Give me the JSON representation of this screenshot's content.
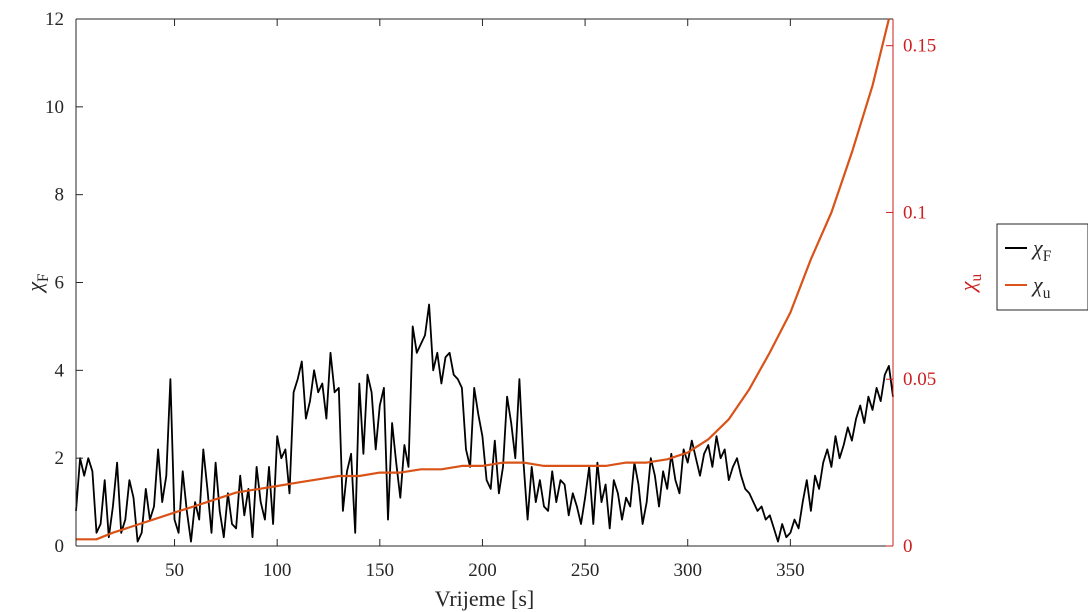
{
  "chart_data": {
    "type": "line",
    "xlabel": "Vrijeme [s]",
    "ylabel": "χF",
    "ylabel_right": "χu",
    "xlim": [
      2,
      400
    ],
    "ylim": [
      0,
      12
    ],
    "ylim_right": [
      0,
      0.158
    ],
    "xticks": [
      50,
      100,
      150,
      200,
      250,
      300,
      350
    ],
    "yticks": [
      0,
      2,
      4,
      6,
      8,
      10,
      12
    ],
    "yticks_right": [
      0,
      0.05,
      0.1,
      0.15
    ],
    "right_axis_color": "#cc1f1f",
    "legend_position": "outside-right",
    "series": [
      {
        "name": "χF",
        "axis": "left",
        "color": "#000000",
        "x": [
          2,
          4,
          6,
          8,
          10,
          12,
          14,
          16,
          18,
          20,
          22,
          24,
          26,
          28,
          30,
          32,
          34,
          36,
          38,
          40,
          42,
          44,
          46,
          48,
          50,
          52,
          54,
          56,
          58,
          60,
          62,
          64,
          66,
          68,
          70,
          72,
          74,
          76,
          78,
          80,
          82,
          84,
          86,
          88,
          90,
          92,
          94,
          96,
          98,
          100,
          102,
          104,
          106,
          108,
          110,
          112,
          114,
          116,
          118,
          120,
          122,
          124,
          126,
          128,
          130,
          132,
          134,
          136,
          138,
          140,
          142,
          144,
          146,
          148,
          150,
          152,
          154,
          156,
          158,
          160,
          162,
          164,
          166,
          168,
          170,
          172,
          174,
          176,
          178,
          180,
          182,
          184,
          186,
          188,
          190,
          192,
          194,
          196,
          198,
          200,
          202,
          204,
          206,
          208,
          210,
          212,
          214,
          216,
          218,
          220,
          222,
          224,
          226,
          228,
          230,
          232,
          234,
          236,
          238,
          240,
          242,
          244,
          246,
          248,
          250,
          252,
          254,
          256,
          258,
          260,
          262,
          264,
          266,
          268,
          270,
          272,
          274,
          276,
          278,
          280,
          282,
          284,
          286,
          288,
          290,
          292,
          294,
          296,
          298,
          300,
          302,
          304,
          306,
          308,
          310,
          312,
          314,
          316,
          318,
          320,
          322,
          324,
          326,
          328,
          330,
          332,
          334,
          336,
          338,
          340,
          342,
          344,
          346,
          348,
          350,
          352,
          354,
          356,
          358,
          360,
          362,
          364,
          366,
          368,
          370,
          372,
          374,
          376,
          378,
          380,
          382,
          384,
          386,
          388,
          390,
          392,
          394,
          396,
          398,
          400
        ],
        "values": [
          0.8,
          2.0,
          1.6,
          2.0,
          1.7,
          0.3,
          0.5,
          1.5,
          0.2,
          0.9,
          1.9,
          0.3,
          0.6,
          1.5,
          1.1,
          0.1,
          0.3,
          1.3,
          0.6,
          0.9,
          2.2,
          1.0,
          1.6,
          3.8,
          0.6,
          0.3,
          1.7,
          0.8,
          0.1,
          1.0,
          0.6,
          2.2,
          1.3,
          0.3,
          1.9,
          0.8,
          0.2,
          1.2,
          0.5,
          0.4,
          1.6,
          0.7,
          1.3,
          0.2,
          1.8,
          1.0,
          0.6,
          1.8,
          0.5,
          2.5,
          2.0,
          2.2,
          1.2,
          3.5,
          3.8,
          4.2,
          2.9,
          3.3,
          4.0,
          3.5,
          3.7,
          2.9,
          4.4,
          3.5,
          3.6,
          0.8,
          1.7,
          2.1,
          0.3,
          3.7,
          2.1,
          3.9,
          3.5,
          2.2,
          3.2,
          3.6,
          0.6,
          2.8,
          1.9,
          1.1,
          2.3,
          1.8,
          5.0,
          4.4,
          4.6,
          4.8,
          5.5,
          4.0,
          4.4,
          3.7,
          4.3,
          4.4,
          3.9,
          3.8,
          3.6,
          2.2,
          1.8,
          3.6,
          3.0,
          2.5,
          1.5,
          1.3,
          2.4,
          1.2,
          1.8,
          3.4,
          2.8,
          2.0,
          3.8,
          1.9,
          0.6,
          1.8,
          1.0,
          1.5,
          0.9,
          0.8,
          1.7,
          1.0,
          1.5,
          1.4,
          0.7,
          1.2,
          0.9,
          0.5,
          1.1,
          1.8,
          0.5,
          1.9,
          1.0,
          1.4,
          0.4,
          1.5,
          1.2,
          0.6,
          1.1,
          0.9,
          1.9,
          1.4,
          0.5,
          1.0,
          2.0,
          1.6,
          0.9,
          1.7,
          1.3,
          2.1,
          1.5,
          1.2,
          2.2,
          1.9,
          2.4,
          2.0,
          1.6,
          2.1,
          2.3,
          1.8,
          2.5,
          2.0,
          2.2,
          1.5,
          1.8,
          2.0,
          1.6,
          1.3,
          1.2,
          1.0,
          0.8,
          0.9,
          0.6,
          0.7,
          0.4,
          0.1,
          0.5,
          0.2,
          0.3,
          0.6,
          0.4,
          1.0,
          1.5,
          0.8,
          1.6,
          1.3,
          1.9,
          2.2,
          1.8,
          2.5,
          2.0,
          2.3,
          2.7,
          2.4,
          2.9,
          3.2,
          2.8,
          3.4,
          3.1,
          3.6,
          3.3,
          3.9,
          4.1,
          3.4
        ]
      },
      {
        "name": "χu",
        "axis": "right",
        "color": "#d95319",
        "x": [
          2,
          12,
          20,
          30,
          40,
          50,
          60,
          70,
          80,
          90,
          100,
          110,
          120,
          130,
          140,
          150,
          160,
          170,
          180,
          190,
          200,
          210,
          220,
          230,
          240,
          250,
          260,
          270,
          280,
          290,
          300,
          310,
          320,
          330,
          340,
          350,
          360,
          370,
          380,
          390,
          398
        ],
        "values": [
          0.002,
          0.002,
          0.004,
          0.006,
          0.008,
          0.01,
          0.012,
          0.014,
          0.016,
          0.017,
          0.018,
          0.019,
          0.02,
          0.021,
          0.021,
          0.022,
          0.022,
          0.023,
          0.023,
          0.024,
          0.024,
          0.025,
          0.025,
          0.024,
          0.024,
          0.024,
          0.024,
          0.025,
          0.025,
          0.026,
          0.028,
          0.032,
          0.038,
          0.047,
          0.058,
          0.07,
          0.086,
          0.1,
          0.118,
          0.138,
          0.158
        ]
      }
    ]
  }
}
